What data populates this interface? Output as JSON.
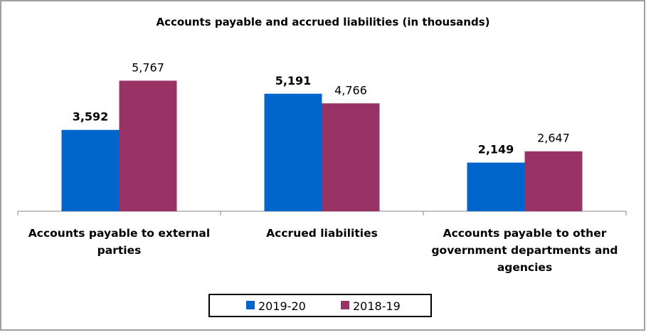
{
  "chart_data": {
    "type": "bar",
    "title": "Accounts payable and accrued liabilities (in thousands)",
    "categories": [
      [
        "Accounts payable to external",
        "parties"
      ],
      [
        "Accrued liabilities"
      ],
      [
        "Accounts payable to other",
        "government departments and",
        "agencies"
      ]
    ],
    "series": [
      {
        "name": "2019-20",
        "values": [
          3592,
          5191,
          2149
        ],
        "labels": [
          "3,592",
          "5,191",
          "2,149"
        ],
        "color": "#0066CC",
        "bold_labels": true
      },
      {
        "name": "2018-19",
        "values": [
          5767,
          4766,
          2647
        ],
        "labels": [
          "5,767",
          "4,766",
          "2,647"
        ],
        "color": "#993366",
        "bold_labels": false
      }
    ],
    "ylim": [
      0,
      6000
    ],
    "grid": false,
    "legend": "bottom"
  }
}
